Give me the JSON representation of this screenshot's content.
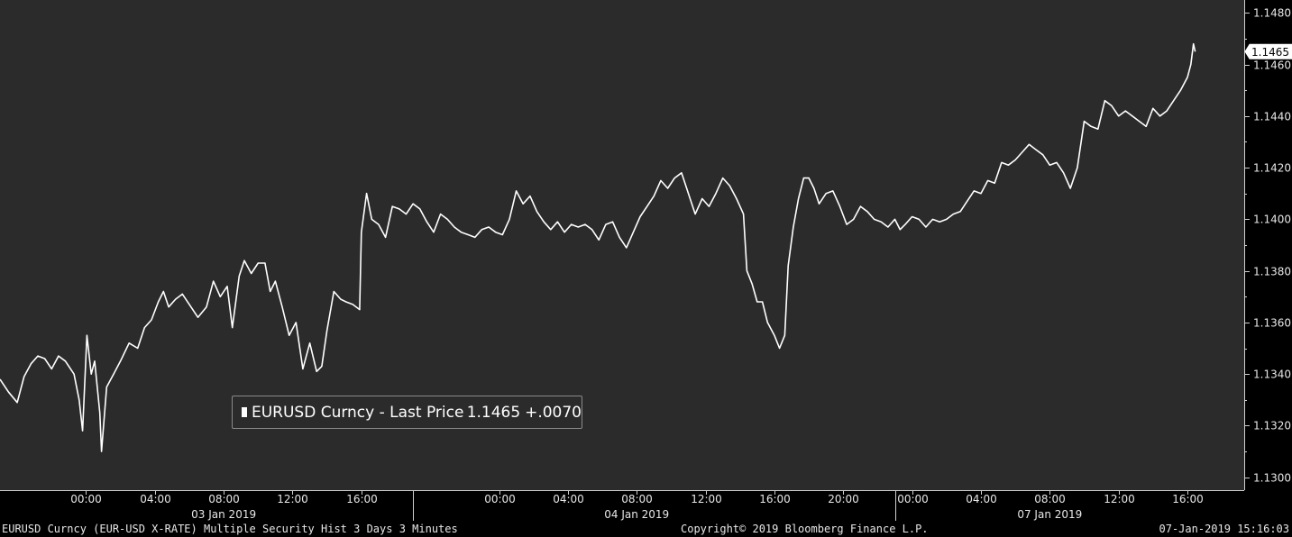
{
  "legend": {
    "label": "EURUSD Curncy - Last Price",
    "last": "1.1465",
    "change": "+.0070",
    "swatch_color": "#ffffff"
  },
  "footer": {
    "left": "EURUSD Curncy (EUR-USD X-RATE) Multiple Security Hist   3 Days 3 Minutes",
    "center": "Copyright© 2019 Bloomberg Finance L.P.",
    "right": "07-Jan-2019 15:16:03"
  },
  "colors": {
    "plot_bg": "#2b2b2b",
    "page_bg": "#000000",
    "series": "#ffffff",
    "axis": "#cfcfcf"
  },
  "chart_data": {
    "type": "line",
    "title": "",
    "xlabel": "",
    "ylabel": "",
    "grid": false,
    "legend_position": "bottom-left",
    "ylim": [
      1.1295,
      1.1485
    ],
    "y_ticks": [
      "1.1300",
      "1.1320",
      "1.1340",
      "1.1360",
      "1.1380",
      "1.1400",
      "1.1420",
      "1.1440",
      "1.1460",
      "1.1480"
    ],
    "last_value_label": "1.1465",
    "time_ticks": [
      {
        "date": "03 Jan 2019",
        "time": "00:00",
        "t": 0
      },
      {
        "date": "03 Jan 2019",
        "time": "04:00",
        "t": 4
      },
      {
        "date": "03 Jan 2019",
        "time": "08:00",
        "t": 8
      },
      {
        "date": "03 Jan 2019",
        "time": "12:00",
        "t": 12
      },
      {
        "date": "03 Jan 2019",
        "time": "16:00",
        "t": 16
      },
      {
        "date": "04 Jan 2019",
        "time": "00:00",
        "t": 24
      },
      {
        "date": "04 Jan 2019",
        "time": "04:00",
        "t": 28
      },
      {
        "date": "04 Jan 2019",
        "time": "08:00",
        "t": 32
      },
      {
        "date": "04 Jan 2019",
        "time": "12:00",
        "t": 36
      },
      {
        "date": "04 Jan 2019",
        "time": "16:00",
        "t": 40
      },
      {
        "date": "04 Jan 2019",
        "time": "20:00",
        "t": 44
      },
      {
        "date": "07 Jan 2019",
        "time": "00:00",
        "t": 48
      },
      {
        "date": "07 Jan 2019",
        "time": "04:00",
        "t": 52
      },
      {
        "date": "07 Jan 2019",
        "time": "08:00",
        "t": 56
      },
      {
        "date": "07 Jan 2019",
        "time": "12:00",
        "t": 60
      },
      {
        "date": "07 Jan 2019",
        "time": "16:00",
        "t": 64
      }
    ],
    "date_labels": [
      {
        "label": "03 Jan 2019",
        "t": 8
      },
      {
        "label": "04 Jan 2019",
        "t": 32
      },
      {
        "label": "07 Jan 2019",
        "t": 56
      }
    ],
    "date_separators": [
      19,
      47
    ],
    "x_range": [
      -5,
      67.3
    ],
    "series": [
      {
        "name": "EURUSD Curncy - Last Price",
        "points": [
          [
            -5,
            1.1338
          ],
          [
            -4.5,
            1.1333
          ],
          [
            -4,
            1.1329
          ],
          [
            -3.6,
            1.1339
          ],
          [
            -3.2,
            1.1344
          ],
          [
            -2.8,
            1.1347
          ],
          [
            -2.4,
            1.1346
          ],
          [
            -2.0,
            1.1342
          ],
          [
            -1.6,
            1.1347
          ],
          [
            -1.2,
            1.1345
          ],
          [
            -0.7,
            1.134
          ],
          [
            -0.4,
            1.133
          ],
          [
            -0.2,
            1.1318
          ],
          [
            0.05,
            1.1355
          ],
          [
            0.3,
            1.134
          ],
          [
            0.5,
            1.1345
          ],
          [
            0.8,
            1.1325
          ],
          [
            0.9,
            1.131
          ],
          [
            1.2,
            1.1335
          ],
          [
            1.6,
            1.134
          ],
          [
            2.0,
            1.1345
          ],
          [
            2.5,
            1.1352
          ],
          [
            3.0,
            1.135
          ],
          [
            3.4,
            1.1358
          ],
          [
            3.8,
            1.1361
          ],
          [
            4.2,
            1.1368
          ],
          [
            4.5,
            1.1372
          ],
          [
            4.8,
            1.1366
          ],
          [
            5.2,
            1.1369
          ],
          [
            5.6,
            1.1371
          ],
          [
            6.0,
            1.1367
          ],
          [
            6.5,
            1.1362
          ],
          [
            7.0,
            1.1366
          ],
          [
            7.4,
            1.1376
          ],
          [
            7.8,
            1.137
          ],
          [
            8.2,
            1.1374
          ],
          [
            8.5,
            1.1358
          ],
          [
            8.9,
            1.1378
          ],
          [
            9.2,
            1.1384
          ],
          [
            9.6,
            1.1379
          ],
          [
            10.0,
            1.1383
          ],
          [
            10.4,
            1.1383
          ],
          [
            10.7,
            1.1372
          ],
          [
            11.0,
            1.1376
          ],
          [
            11.4,
            1.1366
          ],
          [
            11.8,
            1.1355
          ],
          [
            12.2,
            1.136
          ],
          [
            12.6,
            1.1342
          ],
          [
            13.0,
            1.1352
          ],
          [
            13.4,
            1.1341
          ],
          [
            13.7,
            1.1343
          ],
          [
            14.0,
            1.1357
          ],
          [
            14.4,
            1.1372
          ],
          [
            14.8,
            1.1369
          ],
          [
            15.1,
            1.1368
          ],
          [
            15.5,
            1.1367
          ],
          [
            15.9,
            1.1365
          ],
          [
            16.0,
            1.1395
          ],
          [
            16.3,
            1.141
          ],
          [
            16.6,
            1.14
          ],
          [
            17.0,
            1.1398
          ],
          [
            17.4,
            1.1393
          ],
          [
            17.8,
            1.1405
          ],
          [
            18.2,
            1.1404
          ],
          [
            18.6,
            1.1402
          ],
          [
            19.0,
            1.1406
          ],
          [
            19.4,
            1.1404
          ],
          [
            19.8,
            1.1399
          ],
          [
            20.2,
            1.1395
          ],
          [
            20.6,
            1.1402
          ],
          [
            21.0,
            1.14
          ],
          [
            21.4,
            1.1397
          ],
          [
            21.8,
            1.1395
          ],
          [
            22.2,
            1.1394
          ],
          [
            22.6,
            1.1393
          ],
          [
            23.0,
            1.1396
          ],
          [
            23.4,
            1.1397
          ],
          [
            23.8,
            1.1395
          ],
          [
            24.2,
            1.1394
          ],
          [
            24.6,
            1.14
          ],
          [
            25.0,
            1.1411
          ],
          [
            25.4,
            1.1406
          ],
          [
            25.8,
            1.1409
          ],
          [
            26.2,
            1.1403
          ],
          [
            26.6,
            1.1399
          ],
          [
            27.0,
            1.1396
          ],
          [
            27.4,
            1.1399
          ],
          [
            27.8,
            1.1395
          ],
          [
            28.2,
            1.1398
          ],
          [
            28.6,
            1.1397
          ],
          [
            29.0,
            1.1398
          ],
          [
            29.4,
            1.1396
          ],
          [
            29.8,
            1.1392
          ],
          [
            30.2,
            1.1398
          ],
          [
            30.6,
            1.1399
          ],
          [
            31.0,
            1.1393
          ],
          [
            31.4,
            1.1389
          ],
          [
            31.8,
            1.1395
          ],
          [
            32.2,
            1.1401
          ],
          [
            32.6,
            1.1405
          ],
          [
            33.0,
            1.1409
          ],
          [
            33.4,
            1.1415
          ],
          [
            33.8,
            1.1412
          ],
          [
            34.2,
            1.1416
          ],
          [
            34.6,
            1.1418
          ],
          [
            35.0,
            1.141
          ],
          [
            35.4,
            1.1402
          ],
          [
            35.8,
            1.1408
          ],
          [
            36.2,
            1.1405
          ],
          [
            36.6,
            1.141
          ],
          [
            37.0,
            1.1416
          ],
          [
            37.4,
            1.1413
          ],
          [
            37.8,
            1.1408
          ],
          [
            38.2,
            1.1402
          ],
          [
            38.4,
            1.138
          ],
          [
            38.7,
            1.1375
          ],
          [
            39.0,
            1.1368
          ],
          [
            39.3,
            1.1368
          ],
          [
            39.6,
            1.136
          ],
          [
            40.0,
            1.1355
          ],
          [
            40.3,
            1.135
          ],
          [
            40.6,
            1.1355
          ],
          [
            40.8,
            1.1382
          ],
          [
            41.1,
            1.1397
          ],
          [
            41.4,
            1.1408
          ],
          [
            41.7,
            1.1416
          ],
          [
            42.0,
            1.1416
          ],
          [
            42.3,
            1.1412
          ],
          [
            42.6,
            1.1406
          ],
          [
            43.0,
            1.141
          ],
          [
            43.4,
            1.1411
          ],
          [
            43.8,
            1.1405
          ],
          [
            44.2,
            1.1398
          ],
          [
            44.6,
            1.14
          ],
          [
            45.0,
            1.1405
          ],
          [
            45.4,
            1.1403
          ],
          [
            45.8,
            1.14
          ],
          [
            46.2,
            1.1399
          ],
          [
            46.6,
            1.1397
          ],
          [
            47.0,
            1.14
          ],
          [
            47.3,
            1.1396
          ],
          [
            47.6,
            1.1398
          ],
          [
            48.0,
            1.1401
          ],
          [
            48.4,
            1.14
          ],
          [
            48.8,
            1.1397
          ],
          [
            49.2,
            1.14
          ],
          [
            49.6,
            1.1399
          ],
          [
            50.0,
            1.14
          ],
          [
            50.4,
            1.1402
          ],
          [
            50.8,
            1.1403
          ],
          [
            51.2,
            1.1407
          ],
          [
            51.6,
            1.1411
          ],
          [
            52.0,
            1.141
          ],
          [
            52.4,
            1.1415
          ],
          [
            52.8,
            1.1414
          ],
          [
            53.2,
            1.1422
          ],
          [
            53.6,
            1.1421
          ],
          [
            54.0,
            1.1423
          ],
          [
            54.4,
            1.1426
          ],
          [
            54.8,
            1.1429
          ],
          [
            55.2,
            1.1427
          ],
          [
            55.6,
            1.1425
          ],
          [
            56.0,
            1.1421
          ],
          [
            56.4,
            1.1422
          ],
          [
            56.8,
            1.1418
          ],
          [
            57.2,
            1.1412
          ],
          [
            57.6,
            1.142
          ],
          [
            58.0,
            1.1438
          ],
          [
            58.4,
            1.1436
          ],
          [
            58.8,
            1.1435
          ],
          [
            59.2,
            1.1446
          ],
          [
            59.6,
            1.1444
          ],
          [
            60.0,
            1.144
          ],
          [
            60.4,
            1.1442
          ],
          [
            60.8,
            1.144
          ],
          [
            61.2,
            1.1438
          ],
          [
            61.6,
            1.1436
          ],
          [
            62.0,
            1.1443
          ],
          [
            62.4,
            1.144
          ],
          [
            62.8,
            1.1442
          ],
          [
            63.2,
            1.1446
          ],
          [
            63.6,
            1.145
          ],
          [
            64.0,
            1.1455
          ],
          [
            64.2,
            1.146
          ],
          [
            64.35,
            1.1468
          ],
          [
            64.45,
            1.1465
          ]
        ]
      }
    ]
  }
}
